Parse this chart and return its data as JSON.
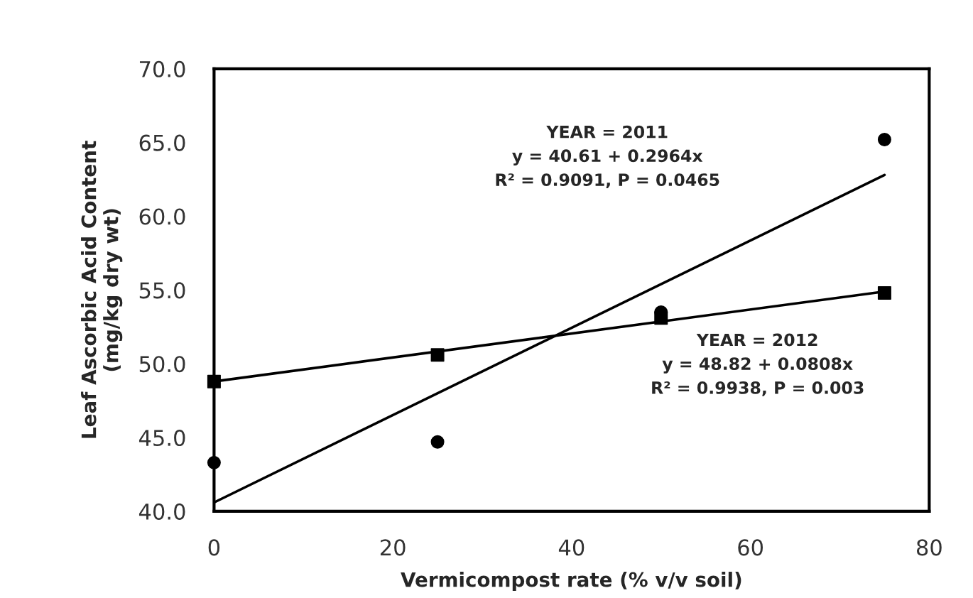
{
  "chart_data": {
    "type": "scatter",
    "xlabel": "Vermicompost rate (% v/v soil)",
    "ylabel": "Leaf Ascorbic Acid Content\n(mg/kg dry wt)",
    "series": [
      {
        "color": "#000000",
        "marker": "circle",
        "x": [
          0,
          25,
          50,
          75
        ],
        "values": [
          43.3,
          44.7,
          53.5,
          65.2
        ]
      },
      {
        "color": "#000000",
        "marker": "square",
        "x": [
          0,
          25,
          50,
          75
        ],
        "values": [
          48.8,
          50.6,
          53.1,
          54.8
        ]
      },
      {
        "type": "line",
        "color": "#000000",
        "marker": "none",
        "x": [
          0,
          75
        ],
        "values": [
          40.6,
          62.8
        ]
      },
      {
        "type": "line",
        "color": "#000000",
        "marker": "none",
        "x": [
          0,
          75
        ],
        "values": [
          48.8,
          54.9
        ]
      }
    ],
    "annotations": [
      "YEAR = 2011\ny = 40.61 + 0.2964x\nR² = 0.9091, P = 0.0465",
      "YEAR = 2012\ny = 48.82 + 0.0808x\nR² = 0.9938, P = 0.003"
    ],
    "xlim": [
      0,
      80
    ],
    "xticks": [
      0,
      20,
      40,
      60,
      80
    ],
    "ylim": [
      40,
      70
    ],
    "yticks": [
      {
        "value": 40,
        "label": "40.0"
      },
      {
        "value": 45,
        "label": "45.0"
      },
      {
        "value": 50,
        "label": "50.0"
      },
      {
        "value": 55,
        "label": "55.0"
      },
      {
        "value": 60,
        "label": "60.0"
      },
      {
        "value": 65,
        "label": "65.0"
      },
      {
        "value": 70,
        "label": "70.0"
      }
    ],
    "grid": false,
    "legend": false
  }
}
